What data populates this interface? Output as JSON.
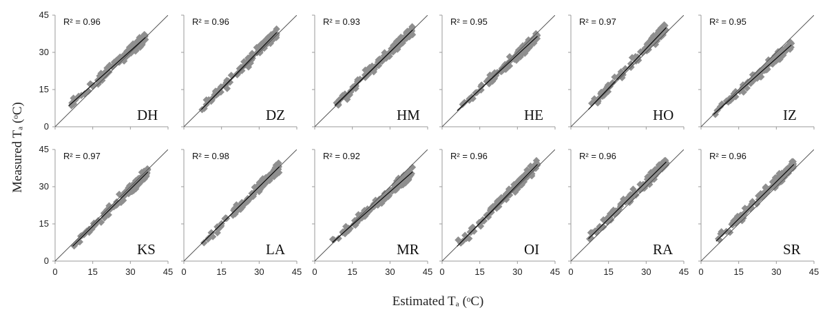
{
  "figure": {
    "ylabel": "Measured Tₐ (ᵒC)",
    "xlabel": "Estimated Tₐ (ᵒC)"
  },
  "chart_data": {
    "type": "scatter",
    "xlabel": "Estimated Tₐ (ᵒC)",
    "ylabel": "Measured Tₐ (ᵒC)",
    "xlim": [
      0,
      45
    ],
    "ylim": [
      0,
      45
    ],
    "xticks": [
      "0",
      "15",
      "30",
      "45"
    ],
    "yticks": [
      "0",
      "15",
      "30",
      "45"
    ],
    "grid": false,
    "reference_line": "1:1",
    "point_color": "#8f8f8f",
    "panels": [
      {
        "site": "DH",
        "r2_label": "R² = 0.96",
        "range": [
          5,
          36
        ],
        "fit": [
          [
            5.5,
            8.5
          ],
          [
            36,
            36
          ]
        ]
      },
      {
        "site": "DZ",
        "r2_label": "R² = 0.96",
        "range": [
          7,
          37
        ],
        "fit": [
          [
            7,
            7
          ],
          [
            37,
            38
          ]
        ]
      },
      {
        "site": "HM",
        "r2_label": "R² = 0.93",
        "range": [
          8,
          39
        ],
        "fit": [
          [
            8,
            8.5
          ],
          [
            39,
            39
          ]
        ]
      },
      {
        "site": "HE",
        "r2_label": "R² = 0.95",
        "range": [
          6,
          38
        ],
        "fit": [
          [
            6,
            6.5
          ],
          [
            38,
            36.5
          ]
        ]
      },
      {
        "site": "HO",
        "r2_label": "R² = 0.97",
        "range": [
          7,
          38
        ],
        "fit": [
          [
            7,
            7
          ],
          [
            38,
            40
          ]
        ]
      },
      {
        "site": "IZ",
        "r2_label": "R² = 0.95",
        "range": [
          5,
          36
        ],
        "fit": [
          [
            5,
            5
          ],
          [
            36,
            33
          ]
        ]
      },
      {
        "site": "KS",
        "r2_label": "R² = 0.97",
        "range": [
          7,
          37
        ],
        "fit": [
          [
            7,
            6
          ],
          [
            37,
            36
          ]
        ]
      },
      {
        "site": "LA",
        "r2_label": "R² = 0.98",
        "range": [
          7,
          38
        ],
        "fit": [
          [
            7,
            7
          ],
          [
            38,
            38
          ]
        ]
      },
      {
        "site": "MR",
        "r2_label": "R² = 0.92",
        "range": [
          7,
          39
        ],
        "fit": [
          [
            7,
            7.5
          ],
          [
            39,
            36
          ]
        ]
      },
      {
        "site": "OI",
        "r2_label": "R² = 0.96",
        "range": [
          6,
          38
        ],
        "fit": [
          [
            6,
            6
          ],
          [
            38,
            39
          ]
        ]
      },
      {
        "site": "RA",
        "r2_label": "R² = 0.96",
        "range": [
          7,
          38
        ],
        "fit": [
          [
            7,
            9
          ],
          [
            38,
            40
          ]
        ]
      },
      {
        "site": "SR",
        "r2_label": "R² = 0.96",
        "range": [
          6,
          37
        ],
        "fit": [
          [
            6,
            8
          ],
          [
            37,
            39
          ]
        ]
      }
    ]
  }
}
